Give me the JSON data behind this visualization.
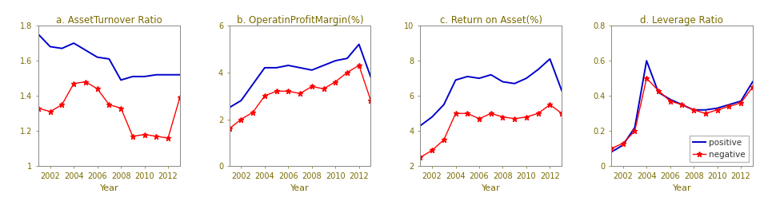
{
  "years": [
    2001,
    2002,
    2003,
    2004,
    2005,
    2006,
    2007,
    2008,
    2009,
    2010,
    2011,
    2012,
    2013
  ],
  "subplots": [
    {
      "title": "a. AssetTurnover Ratio",
      "xlabel": "Year",
      "ylim": [
        1,
        1.8
      ],
      "yticks": [
        1.0,
        1.2,
        1.4,
        1.6,
        1.8
      ],
      "positive": [
        1.75,
        1.68,
        1.67,
        1.7,
        1.66,
        1.62,
        1.61,
        1.49,
        1.51,
        1.51,
        1.52,
        1.52,
        1.52
      ],
      "negative": [
        1.33,
        1.31,
        1.35,
        1.47,
        1.48,
        1.44,
        1.35,
        1.33,
        1.17,
        1.18,
        1.17,
        1.16,
        1.39
      ]
    },
    {
      "title": "b. OperatinProfitMargin(%)",
      "xlabel": "Year",
      "ylim": [
        0,
        6
      ],
      "yticks": [
        0,
        2,
        4,
        6
      ],
      "positive": [
        2.5,
        2.8,
        3.5,
        4.2,
        4.2,
        4.3,
        4.2,
        4.1,
        4.3,
        4.5,
        4.6,
        5.2,
        3.8
      ],
      "negative": [
        1.6,
        2.0,
        2.3,
        3.0,
        3.2,
        3.2,
        3.1,
        3.4,
        3.3,
        3.6,
        4.0,
        4.3,
        2.8
      ]
    },
    {
      "title": "c. Return on Asset(%)",
      "xlabel": "Year",
      "ylim": [
        2,
        10
      ],
      "yticks": [
        2,
        4,
        6,
        8,
        10
      ],
      "positive": [
        4.3,
        4.8,
        5.5,
        6.9,
        7.1,
        7.0,
        7.2,
        6.8,
        6.7,
        7.0,
        7.5,
        8.1,
        6.3
      ],
      "negative": [
        2.5,
        2.9,
        3.5,
        5.0,
        5.0,
        4.7,
        5.0,
        4.8,
        4.7,
        4.8,
        5.0,
        5.5,
        5.0
      ]
    },
    {
      "title": "d. Leverage Ratio",
      "xlabel": "Year",
      "ylim": [
        0,
        0.8
      ],
      "yticks": [
        0,
        0.2,
        0.4,
        0.6,
        0.8
      ],
      "positive": [
        0.08,
        0.12,
        0.22,
        0.6,
        0.42,
        0.38,
        0.35,
        0.32,
        0.32,
        0.33,
        0.35,
        0.37,
        0.48
      ],
      "negative": [
        0.1,
        0.13,
        0.2,
        0.5,
        0.43,
        0.37,
        0.35,
        0.32,
        0.3,
        0.32,
        0.34,
        0.36,
        0.45
      ]
    }
  ],
  "positive_color": "#0000cc",
  "negative_color": "#ff0000",
  "positive_label": "positive",
  "negative_label": "negative",
  "bg_color": "#ffffff",
  "title_color": "#7a6a00",
  "tick_color": "#7a6a00",
  "title_fontsize": 8.5,
  "label_fontsize": 8,
  "tick_fontsize": 7,
  "legend_fontsize": 7.5
}
